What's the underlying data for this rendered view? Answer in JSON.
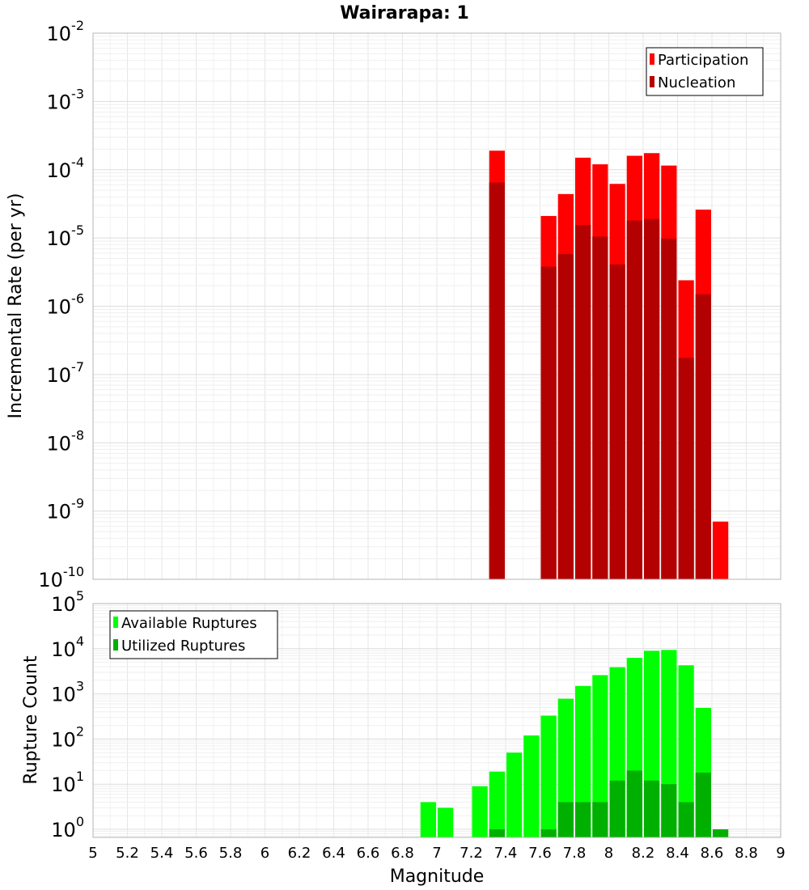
{
  "chart_data": [
    {
      "type": "bar",
      "title": "Wairarapa: 1",
      "xlabel": "",
      "ylabel": "Incremental Rate (per yr)",
      "y_scale": "log",
      "ylim": [
        1e-10,
        0.01
      ],
      "xlim": [
        5,
        9
      ],
      "y_ticks": [
        {
          "base": "10",
          "exp": "-10"
        },
        {
          "base": "10",
          "exp": "-9"
        },
        {
          "base": "10",
          "exp": "-8"
        },
        {
          "base": "10",
          "exp": "-7"
        },
        {
          "base": "10",
          "exp": "-6"
        },
        {
          "base": "10",
          "exp": "-5"
        },
        {
          "base": "10",
          "exp": "-4"
        },
        {
          "base": "10",
          "exp": "-3"
        },
        {
          "base": "10",
          "exp": "-2"
        }
      ],
      "grid": true,
      "legend_position": "top-right",
      "colors": {
        "Participation": "#ff0000",
        "Nucleation": "#b30000"
      },
      "series": [
        {
          "name": "Participation",
          "x": [
            7.35,
            7.65,
            7.75,
            7.85,
            7.95,
            8.05,
            8.15,
            8.25,
            8.35,
            8.45,
            8.55,
            8.65
          ],
          "values": [
            0.00019,
            2.1e-05,
            4.4e-05,
            0.00015,
            0.00012,
            6.2e-05,
            0.00016,
            0.000175,
            0.000115,
            2.4e-06,
            2.6e-05,
            7e-10
          ]
        },
        {
          "name": "Nucleation",
          "x": [
            7.35,
            7.65,
            7.75,
            7.85,
            7.95,
            8.05,
            8.15,
            8.25,
            8.35,
            8.45,
            8.55
          ],
          "values": [
            6.5e-05,
            3.8e-06,
            5.8e-06,
            1.55e-05,
            1.05e-05,
            4.1e-06,
            1.8e-05,
            1.9e-05,
            9.8e-06,
            1.75e-07,
            1.5e-06
          ]
        }
      ]
    },
    {
      "type": "bar",
      "title": "",
      "xlabel": "Magnitude",
      "ylabel": "Rupture Count",
      "y_scale": "log",
      "ylim": [
        0.7,
        100000
      ],
      "xlim": [
        5,
        9
      ],
      "x_ticks": [
        "5",
        "5.2",
        "5.4",
        "5.6",
        "5.8",
        "6",
        "6.2",
        "6.4",
        "6.6",
        "6.8",
        "7",
        "7.2",
        "7.4",
        "7.6",
        "7.8",
        "8",
        "8.2",
        "8.4",
        "8.6",
        "8.8",
        "9"
      ],
      "y_ticks": [
        {
          "base": "10",
          "exp": "0"
        },
        {
          "base": "10",
          "exp": "1"
        },
        {
          "base": "10",
          "exp": "2"
        },
        {
          "base": "10",
          "exp": "3"
        },
        {
          "base": "10",
          "exp": "4"
        },
        {
          "base": "10",
          "exp": "5"
        }
      ],
      "grid": true,
      "legend_position": "top-left",
      "colors": {
        "Available Ruptures": "#00ff00",
        "Utilized Ruptures": "#00b000"
      },
      "series": [
        {
          "name": "Available Ruptures",
          "x": [
            6.95,
            7.05,
            7.25,
            7.35,
            7.45,
            7.55,
            7.65,
            7.75,
            7.85,
            7.95,
            8.05,
            8.15,
            8.25,
            8.35,
            8.45,
            8.55
          ],
          "values": [
            4,
            3,
            9,
            19,
            50,
            120,
            330,
            780,
            1500,
            2600,
            3900,
            6300,
            9000,
            9400,
            4300,
            490
          ]
        },
        {
          "name": "Utilized Ruptures",
          "x": [
            7.35,
            7.65,
            7.75,
            7.85,
            7.95,
            8.05,
            8.15,
            8.25,
            8.35,
            8.45,
            8.55,
            8.65
          ],
          "values": [
            1,
            1,
            4,
            4,
            4,
            12,
            20,
            12,
            10,
            4,
            18,
            1
          ]
        }
      ]
    }
  ]
}
